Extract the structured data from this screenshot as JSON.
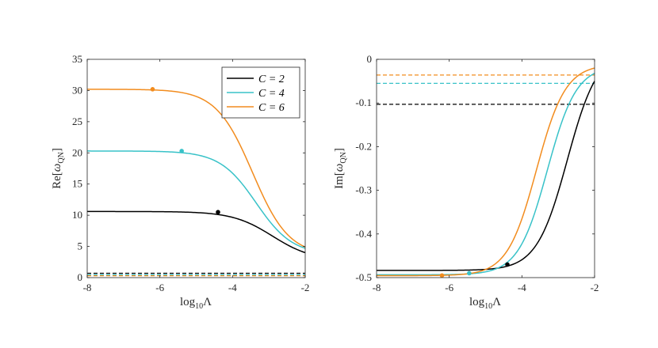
{
  "chart_data": [
    {
      "type": "line",
      "title": "",
      "xlabel": "log10 Λ",
      "xlabel_base": "log",
      "xlabel_sub": "10",
      "xlabel_sym": "Λ",
      "ylabel": "Re[ω_QN]",
      "ylabel_prefix": "Re[",
      "ylabel_sym": "ω",
      "ylabel_sub": "QN",
      "ylabel_suffix": "]",
      "xlim": [
        -8,
        -2
      ],
      "ylim": [
        0,
        35
      ],
      "xticks": [
        -8,
        -6,
        -4,
        -2
      ],
      "xtick_labels": [
        "-8",
        "-6",
        "-4",
        "-2"
      ],
      "yticks": [
        0,
        5,
        10,
        15,
        20,
        25,
        30,
        35
      ],
      "ytick_labels": [
        "0",
        "5",
        "10",
        "15",
        "20",
        "25",
        "30",
        "35"
      ],
      "legend_position": "top-right",
      "grid": false,
      "series": [
        {
          "name": "C = 2",
          "color": "#000000",
          "plateau": 10.6,
          "end": 4.0,
          "center": -2.9,
          "width": 0.55,
          "marker": {
            "x": -4.4,
            "y": 10.5
          },
          "asymptote": 0.7
        },
        {
          "name": "C = 4",
          "color": "#38c2c8",
          "plateau": 20.3,
          "end": 4.7,
          "center": -3.35,
          "width": 0.5,
          "marker": {
            "x": -5.4,
            "y": 20.3
          },
          "asymptote": 0.45
        },
        {
          "name": "C = 6",
          "color": "#f28c1e",
          "plateau": 30.2,
          "end": 4.9,
          "center": -3.45,
          "width": 0.5,
          "marker": {
            "x": -6.2,
            "y": 30.2
          },
          "asymptote": 0.3
        }
      ]
    },
    {
      "type": "line",
      "title": "",
      "xlabel": "log10 Λ",
      "xlabel_base": "log",
      "xlabel_sub": "10",
      "xlabel_sym": "Λ",
      "ylabel": "Im[ω_QN]",
      "ylabel_prefix": "Im[",
      "ylabel_sym": "ω",
      "ylabel_sub": "QN",
      "ylabel_suffix": "]",
      "xlim": [
        -8,
        -2
      ],
      "ylim": [
        -0.5,
        0
      ],
      "xticks": [
        -8,
        -6,
        -4,
        -2
      ],
      "xtick_labels": [
        "-8",
        "-6",
        "-4",
        "-2"
      ],
      "yticks": [
        -0.5,
        -0.4,
        -0.3,
        -0.2,
        -0.1,
        0
      ],
      "ytick_labels": [
        "-0.5",
        "-0.4",
        "-0.3",
        "-0.2",
        "-0.1",
        "0"
      ],
      "grid": false,
      "series": [
        {
          "name": "C = 2",
          "color": "#000000",
          "plateau": -0.4835,
          "end": -0.05,
          "center": -2.75,
          "width": 0.42,
          "marker": {
            "x": -4.4,
            "y": -0.47
          },
          "asymptote": -0.103
        },
        {
          "name": "C = 4",
          "color": "#38c2c8",
          "plateau": -0.4935,
          "end": -0.032,
          "center": -3.3,
          "width": 0.4,
          "marker": {
            "x": -5.45,
            "y": -0.49
          },
          "asymptote": -0.055
        },
        {
          "name": "C = 6",
          "color": "#f28c1e",
          "plateau": -0.4955,
          "end": -0.02,
          "center": -3.6,
          "width": 0.4,
          "marker": {
            "x": -6.2,
            "y": -0.495
          },
          "asymptote": -0.036
        }
      ]
    }
  ]
}
